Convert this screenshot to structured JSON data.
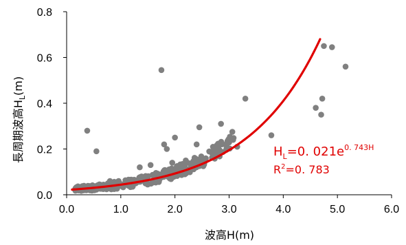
{
  "chart_data": {
    "type": "scatter",
    "xlabel": "波高H(m)",
    "ylabel": "長周期波高H",
    "ylabel_subscript": "L",
    "ylabel_unit": "(m)",
    "xlim": [
      0,
      6
    ],
    "ylim": [
      0,
      0.8
    ],
    "x_ticks": [
      "0.0",
      "1.0",
      "2.0",
      "3.0",
      "4.0",
      "5.0",
      "6.0"
    ],
    "y_ticks": [
      "0.0",
      "0.2",
      "0.4",
      "0.6",
      "0.8"
    ],
    "grid": false,
    "legend": "none",
    "point_color": "#808080",
    "curve_color": "#e00000",
    "fit": {
      "a": 0.021,
      "b": 0.743,
      "x_start": 0.1,
      "x_end": 4.68
    },
    "equation": {
      "lhs": "H",
      "lhs_sub": "L",
      "rhs": "=0. 021e",
      "exponent": "0. 743H",
      "r2_base": "R",
      "r2_sup": "2",
      "r2_value": "=0. 783"
    },
    "outliers": [
      {
        "x": 0.38,
        "y": 0.28
      },
      {
        "x": 0.55,
        "y": 0.19
      },
      {
        "x": 0.8,
        "y": 0.06
      },
      {
        "x": 1.75,
        "y": 0.545
      },
      {
        "x": 1.8,
        "y": 0.22
      },
      {
        "x": 1.85,
        "y": 0.2
      },
      {
        "x": 2.0,
        "y": 0.25
      },
      {
        "x": 2.45,
        "y": 0.295
      },
      {
        "x": 2.4,
        "y": 0.22
      },
      {
        "x": 2.85,
        "y": 0.31
      },
      {
        "x": 3.3,
        "y": 0.42
      },
      {
        "x": 3.78,
        "y": 0.26
      },
      {
        "x": 4.6,
        "y": 0.38
      },
      {
        "x": 4.72,
        "y": 0.42
      },
      {
        "x": 4.7,
        "y": 0.35
      },
      {
        "x": 4.75,
        "y": 0.65
      },
      {
        "x": 4.9,
        "y": 0.645
      },
      {
        "x": 5.15,
        "y": 0.56
      },
      {
        "x": 2.95,
        "y": 0.2
      },
      {
        "x": 3.15,
        "y": 0.21
      },
      {
        "x": 2.7,
        "y": 0.17
      },
      {
        "x": 2.55,
        "y": 0.15
      },
      {
        "x": 1.55,
        "y": 0.13
      },
      {
        "x": 1.35,
        "y": 0.12
      },
      {
        "x": 2.2,
        "y": 0.15
      },
      {
        "x": 1.95,
        "y": 0.14
      }
    ],
    "cluster": {
      "count": 320,
      "x_start": 0.15,
      "x_end": 3.1,
      "base_a": 0.015,
      "base_b": 0.9,
      "spread": 0.018
    }
  }
}
